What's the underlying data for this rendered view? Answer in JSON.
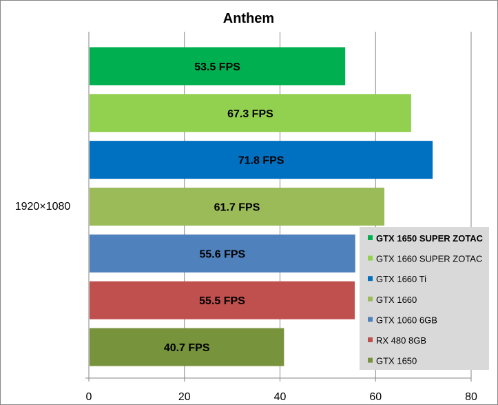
{
  "chart_data": {
    "type": "bar",
    "orientation": "horizontal",
    "title": "Anthem",
    "categories": [
      "1920×1080"
    ],
    "xlim": [
      0,
      80
    ],
    "x_ticks": [
      "0",
      "20",
      "40",
      "60",
      "80"
    ],
    "grid": "vertical",
    "legend_position": "right",
    "series": [
      {
        "name": "GTX 1650 SUPER ZOTAC",
        "value": 53.5,
        "label": "53.5 FPS",
        "color": "#00b050",
        "bold": true
      },
      {
        "name": "GTX 1660 SUPER ZOTAC",
        "value": 67.3,
        "label": "67.3 FPS",
        "color": "#92d050"
      },
      {
        "name": "GTX 1660 Ti",
        "value": 71.8,
        "label": "71.8 FPS",
        "color": "#0070c0"
      },
      {
        "name": "GTX 1660",
        "value": 61.7,
        "label": "61.7 FPS",
        "color": "#9bbb59"
      },
      {
        "name": "GTX 1060 6GB",
        "value": 55.6,
        "label": "55.6 FPS",
        "color": "#4f81bd"
      },
      {
        "name": "RX 480 8GB",
        "value": 55.5,
        "label": "55.5 FPS",
        "color": "#c0504d"
      },
      {
        "name": "GTX 1650",
        "value": 40.7,
        "label": "40.7 FPS",
        "color": "#77933c"
      }
    ]
  }
}
